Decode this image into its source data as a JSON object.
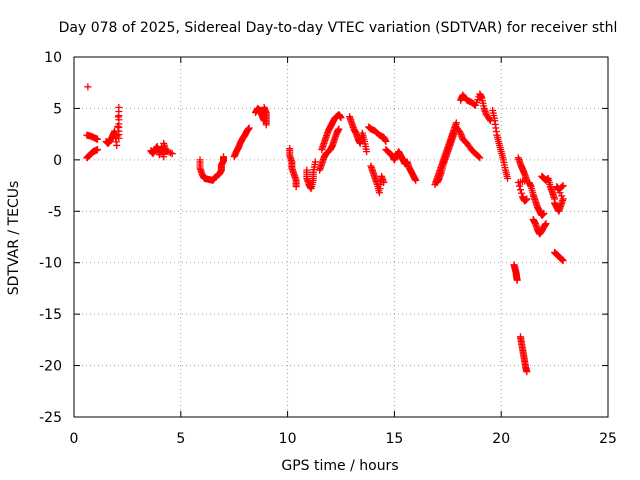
{
  "chart_data": {
    "type": "scatter",
    "title": "Day 078 of 2025, Sidereal Day-to-day VTEC variation (SDTVAR) for receiver sthl",
    "xlabel": "GPS time / hours",
    "ylabel": "SDTVAR / TECUs",
    "xlim": [
      0,
      25
    ],
    "ylim": [
      -25,
      10
    ],
    "x_ticks": [
      0,
      5,
      10,
      15,
      20,
      25
    ],
    "y_ticks": [
      10,
      5,
      0,
      -5,
      -10,
      -15,
      -20,
      -25
    ],
    "grid": true,
    "marker": "+",
    "color": "#ff0000",
    "series": [
      {
        "name": "SDTVAR",
        "segments": [
          [
            [
              0.65,
              7.1
            ]
          ],
          [
            [
              0.6,
              0.2
            ],
            [
              0.7,
              0.4
            ],
            [
              0.8,
              0.6
            ],
            [
              0.9,
              0.8
            ],
            [
              1.0,
              0.9
            ],
            [
              1.1,
              1.0
            ]
          ],
          [
            [
              0.6,
              2.4
            ],
            [
              0.8,
              2.3
            ],
            [
              1.0,
              2.1
            ],
            [
              1.1,
              2.0
            ]
          ],
          [
            [
              1.5,
              1.8
            ],
            [
              1.6,
              1.6
            ],
            [
              1.7,
              1.9
            ],
            [
              1.8,
              2.3
            ],
            [
              1.9,
              2.8
            ],
            [
              2.0,
              1.4
            ],
            [
              2.1,
              5.1
            ],
            [
              2.1,
              3.5
            ],
            [
              2.1,
              2.1
            ]
          ],
          [
            [
              3.6,
              0.9
            ],
            [
              3.7,
              0.6
            ],
            [
              3.8,
              1.0
            ],
            [
              3.9,
              1.3
            ],
            [
              4.0,
              0.5
            ],
            [
              4.1,
              1.2
            ],
            [
              4.2,
              0.3
            ],
            [
              4.2,
              1.6
            ],
            [
              4.3,
              0.9
            ],
            [
              4.6,
              0.6
            ]
          ],
          [
            [
              5.9,
              0.0
            ],
            [
              5.9,
              -0.8
            ],
            [
              6.0,
              -1.4
            ],
            [
              6.1,
              -1.8
            ],
            [
              6.3,
              -1.9
            ],
            [
              6.5,
              -2.0
            ],
            [
              6.6,
              -1.7
            ],
            [
              6.8,
              -1.4
            ],
            [
              6.9,
              -1.0
            ],
            [
              6.9,
              -0.5
            ],
            [
              7.0,
              -0.1
            ],
            [
              7.0,
              0.3
            ]
          ],
          [
            [
              7.5,
              0.3
            ],
            [
              7.6,
              0.8
            ],
            [
              7.7,
              1.2
            ],
            [
              7.8,
              1.7
            ],
            [
              7.9,
              2.1
            ],
            [
              8.0,
              2.4
            ],
            [
              8.1,
              2.8
            ],
            [
              8.2,
              3.1
            ]
          ],
          [
            [
              8.5,
              4.6
            ],
            [
              8.6,
              5.0
            ],
            [
              8.7,
              4.8
            ],
            [
              8.8,
              4.3
            ],
            [
              8.9,
              3.8
            ],
            [
              8.9,
              5.1
            ],
            [
              9.0,
              4.6
            ],
            [
              9.0,
              4.0
            ],
            [
              9.0,
              3.4
            ]
          ],
          [
            [
              10.1,
              1.1
            ],
            [
              10.1,
              0.4
            ],
            [
              10.2,
              -0.2
            ],
            [
              10.2,
              -0.8
            ],
            [
              10.3,
              -1.4
            ],
            [
              10.4,
              -2.0
            ],
            [
              10.4,
              -2.6
            ]
          ],
          [
            [
              10.9,
              -1.0
            ],
            [
              10.9,
              -1.8
            ],
            [
              11.0,
              -2.4
            ],
            [
              11.1,
              -2.8
            ],
            [
              11.2,
              -2.0
            ],
            [
              11.2,
              -1.2
            ],
            [
              11.3,
              -0.2
            ]
          ],
          [
            [
              11.6,
              1.0
            ],
            [
              11.7,
              1.6
            ],
            [
              11.8,
              2.2
            ],
            [
              11.9,
              2.8
            ],
            [
              12.0,
              3.2
            ],
            [
              12.1,
              3.6
            ],
            [
              12.2,
              4.0
            ],
            [
              12.3,
              4.2
            ],
            [
              12.4,
              4.4
            ],
            [
              12.5,
              4.1
            ]
          ],
          [
            [
              11.5,
              -1.0
            ],
            [
              11.6,
              -0.4
            ],
            [
              11.7,
              0.2
            ],
            [
              11.8,
              0.6
            ],
            [
              12.0,
              1.0
            ],
            [
              12.1,
              1.4
            ],
            [
              12.2,
              2.0
            ],
            [
              12.3,
              2.6
            ],
            [
              12.4,
              3.0
            ]
          ],
          [
            [
              12.9,
              4.2
            ],
            [
              13.0,
              3.6
            ],
            [
              13.1,
              3.0
            ],
            [
              13.2,
              2.6
            ],
            [
              13.3,
              2.0
            ],
            [
              13.4,
              1.6
            ],
            [
              13.5,
              2.6
            ],
            [
              13.6,
              1.8
            ],
            [
              13.7,
              0.8
            ]
          ],
          [
            [
              13.8,
              3.2
            ],
            [
              13.9,
              3.0
            ],
            [
              14.1,
              2.8
            ],
            [
              14.3,
              2.4
            ],
            [
              14.5,
              2.2
            ],
            [
              14.6,
              1.8
            ]
          ],
          [
            [
              13.9,
              -0.6
            ],
            [
              14.0,
              -1.2
            ],
            [
              14.1,
              -1.8
            ],
            [
              14.2,
              -2.4
            ],
            [
              14.3,
              -3.2
            ],
            [
              14.4,
              -1.6
            ],
            [
              14.5,
              -2.2
            ]
          ],
          [
            [
              14.6,
              1.0
            ],
            [
              14.8,
              0.6
            ],
            [
              14.9,
              0.4
            ],
            [
              15.0,
              0.0
            ],
            [
              15.1,
              0.4
            ],
            [
              15.2,
              0.8
            ],
            [
              15.3,
              0.4
            ],
            [
              15.4,
              0.0
            ],
            [
              15.5,
              -0.4
            ],
            [
              15.6,
              -0.2
            ],
            [
              15.7,
              -0.8
            ],
            [
              15.8,
              -1.2
            ],
            [
              15.9,
              -1.6
            ],
            [
              16.0,
              -2.0
            ]
          ],
          [
            [
              16.9,
              -2.4
            ],
            [
              17.0,
              -1.8
            ],
            [
              17.1,
              -1.2
            ],
            [
              17.2,
              -0.6
            ],
            [
              17.3,
              0.0
            ],
            [
              17.4,
              0.6
            ],
            [
              17.5,
              1.2
            ],
            [
              17.6,
              1.8
            ],
            [
              17.7,
              2.4
            ],
            [
              17.8,
              3.0
            ],
            [
              17.9,
              3.6
            ]
          ],
          [
            [
              17.0,
              -2.2
            ],
            [
              17.1,
              -1.8
            ],
            [
              17.2,
              -1.2
            ],
            [
              17.3,
              -0.4
            ],
            [
              17.4,
              0.2
            ],
            [
              17.5,
              0.8
            ],
            [
              17.6,
              1.4
            ],
            [
              17.7,
              2.0
            ],
            [
              17.8,
              2.6
            ]
          ],
          [
            [
              18.1,
              5.8
            ],
            [
              18.2,
              6.3
            ],
            [
              18.4,
              5.8
            ],
            [
              18.6,
              5.6
            ],
            [
              18.8,
              5.3
            ],
            [
              19.0,
              6.4
            ],
            [
              19.1,
              6.0
            ],
            [
              19.2,
              5.0
            ],
            [
              19.3,
              4.4
            ],
            [
              19.5,
              3.8
            ]
          ],
          [
            [
              17.9,
              3.2
            ],
            [
              18.1,
              2.6
            ],
            [
              18.2,
              2.0
            ],
            [
              18.4,
              1.6
            ],
            [
              18.6,
              1.0
            ],
            [
              18.8,
              0.6
            ],
            [
              19.0,
              0.2
            ]
          ],
          [
            [
              19.6,
              4.8
            ],
            [
              19.7,
              3.8
            ],
            [
              19.8,
              2.4
            ],
            [
              19.9,
              1.6
            ],
            [
              20.0,
              0.8
            ],
            [
              20.1,
              0.0
            ],
            [
              20.2,
              -1.0
            ],
            [
              20.3,
              -1.8
            ]
          ],
          [
            [
              20.8,
              0.2
            ],
            [
              20.9,
              -0.4
            ],
            [
              21.0,
              -0.9
            ],
            [
              21.1,
              -1.4
            ],
            [
              21.2,
              -2.0
            ],
            [
              20.8,
              -2.2
            ],
            [
              21.0,
              -3.6
            ],
            [
              21.1,
              -4.0
            ],
            [
              21.2,
              -3.8
            ]
          ],
          [
            [
              21.3,
              -2.2
            ],
            [
              21.4,
              -2.6
            ],
            [
              21.5,
              -3.4
            ],
            [
              21.6,
              -4.0
            ],
            [
              21.7,
              -4.6
            ],
            [
              21.8,
              -5.0
            ],
            [
              21.9,
              -5.4
            ],
            [
              22.0,
              -5.2
            ]
          ],
          [
            [
              21.5,
              -5.8
            ],
            [
              21.6,
              -6.2
            ],
            [
              21.7,
              -6.8
            ],
            [
              21.8,
              -7.2
            ],
            [
              21.9,
              -6.9
            ],
            [
              22.0,
              -6.5
            ],
            [
              22.1,
              -6.2
            ]
          ],
          [
            [
              21.9,
              -1.6
            ],
            [
              22.0,
              -1.8
            ],
            [
              22.1,
              -2.0
            ],
            [
              22.2,
              -1.8
            ],
            [
              22.3,
              -2.6
            ],
            [
              22.4,
              -3.2
            ],
            [
              22.5,
              -3.8
            ]
          ],
          [
            [
              22.5,
              -4.2
            ],
            [
              22.6,
              -4.6
            ],
            [
              22.7,
              -5.0
            ],
            [
              22.8,
              -4.4
            ],
            [
              22.9,
              -3.8
            ],
            [
              22.6,
              -2.6
            ],
            [
              22.7,
              -2.9
            ],
            [
              22.9,
              -2.5
            ]
          ],
          [
            [
              22.5,
              -9.0
            ],
            [
              22.6,
              -9.2
            ],
            [
              22.7,
              -9.4
            ],
            [
              22.8,
              -9.6
            ],
            [
              22.9,
              -9.8
            ]
          ],
          [
            [
              20.6,
              -10.2
            ],
            [
              20.65,
              -10.6
            ],
            [
              20.7,
              -11.0
            ],
            [
              20.72,
              -11.4
            ],
            [
              20.75,
              -11.7
            ]
          ],
          [
            [
              20.9,
              -17.2
            ],
            [
              20.95,
              -17.8
            ],
            [
              21.0,
              -18.4
            ],
            [
              21.05,
              -19.0
            ],
            [
              21.1,
              -19.6
            ],
            [
              21.15,
              -20.2
            ],
            [
              21.2,
              -20.6
            ]
          ]
        ]
      }
    ]
  }
}
